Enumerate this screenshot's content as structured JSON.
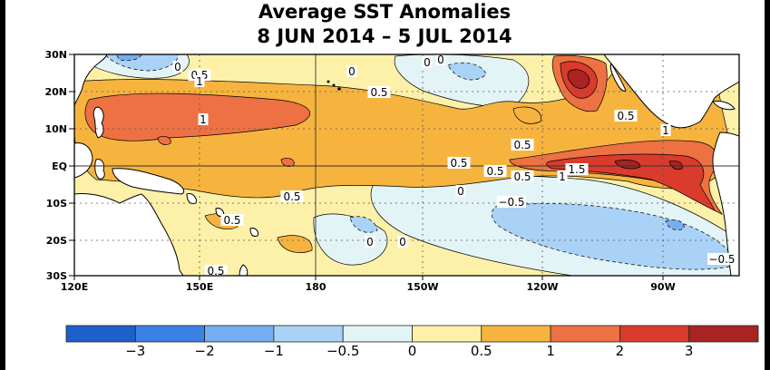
{
  "title": {
    "line1": "Average SST Anomalies",
    "line2": "8 JUN 2014 – 5 JUL 2014"
  },
  "axes": {
    "lat_labels": [
      "30N",
      "20N",
      "10N",
      "EQ",
      "10S",
      "20S",
      "30S"
    ],
    "lon_labels": [
      "120E",
      "150E",
      "180",
      "150W",
      "120W",
      "90W"
    ]
  },
  "contour_labels": [
    "0",
    "0",
    "0.5",
    "1",
    "0.5",
    "0",
    "1",
    "0",
    "0.5",
    "0.5",
    "0.5",
    "1",
    "0.5",
    "1.5",
    "1",
    "0.5",
    "−0.5",
    "0.5",
    "0",
    "0",
    "0",
    "−0.5",
    "0.5",
    "0.5"
  ],
  "colorbar": {
    "colors": [
      "#1f5fc9",
      "#3b82e4",
      "#74aef0",
      "#a9d2f6",
      "#e3f4f6",
      "#fdf1a9",
      "#f6b43f",
      "#ed7142",
      "#d93b2d",
      "#a82321"
    ],
    "ticks": [
      "−3",
      "−2",
      "−1",
      "−0.5",
      "0",
      "0.5",
      "1",
      "2",
      "3"
    ]
  }
}
